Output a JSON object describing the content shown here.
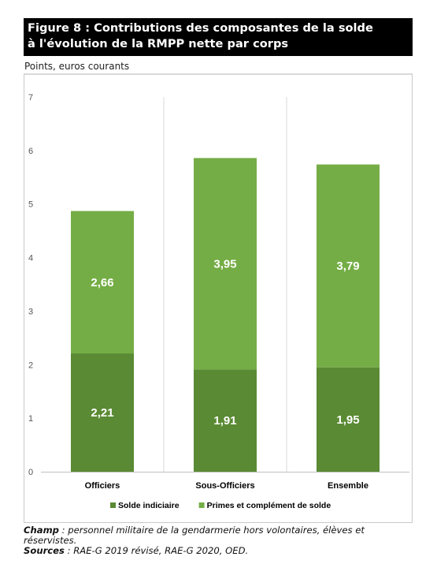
{
  "title_line1": "Figure 8 : Contributions des composantes de la solde",
  "title_line2": "à l'évolution de la RMPP nette par corps",
  "units": "Points, euros courants",
  "chart_data": {
    "type": "bar",
    "stacked": true,
    "categories": [
      "Officiers",
      "Sous-Officiers",
      "Ensemble"
    ],
    "series": [
      {
        "name": "Solde indiciaire",
        "values": [
          2.21,
          1.91,
          1.95
        ],
        "labels": [
          "2,21",
          "1,91",
          "1,95"
        ],
        "color": "#5a8a33"
      },
      {
        "name": "Primes et complément de solde",
        "values": [
          2.66,
          3.95,
          3.79
        ],
        "labels": [
          "2,66",
          "3,95",
          "3,79"
        ],
        "color": "#74ad45"
      }
    ],
    "ylim": [
      0,
      7
    ],
    "yticks": [
      "0",
      "1",
      "2",
      "3",
      "4",
      "5",
      "6",
      "7"
    ],
    "legend_position": "bottom",
    "gridlines": "vertical separators"
  },
  "notes": {
    "champ_label": "Champ",
    "champ_text": " : personnel militaire de la gendarmerie hors volontaires, élèves et réservistes.",
    "sources_label": "Sources",
    "sources_text": " : RAE-G 2019 révisé, RAE-G 2020, OED."
  }
}
